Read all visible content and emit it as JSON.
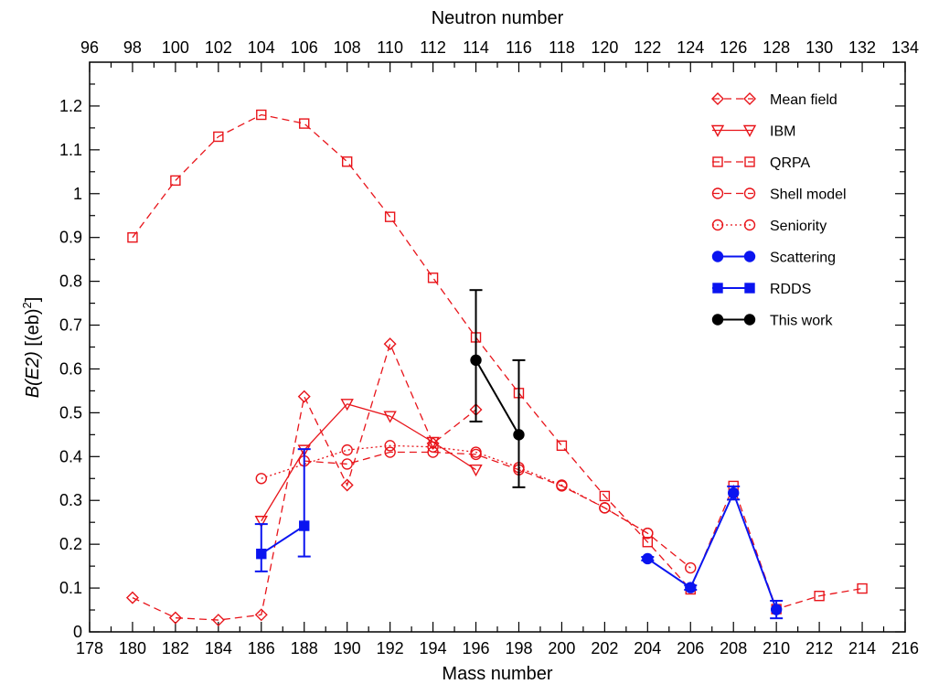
{
  "chart_data": {
    "type": "line",
    "xlabel": "Mass number",
    "x2label": "Neutron number",
    "xlim": [
      178,
      216
    ],
    "xticks": [
      178,
      180,
      182,
      184,
      186,
      188,
      190,
      192,
      194,
      196,
      198,
      200,
      202,
      204,
      206,
      208,
      210,
      212,
      214,
      216
    ],
    "x2ticks": [
      96,
      98,
      100,
      102,
      104,
      106,
      108,
      110,
      112,
      114,
      116,
      118,
      120,
      122,
      124,
      126,
      128,
      130,
      132,
      134
    ],
    "ylim": [
      0,
      1.3
    ],
    "yticks": [
      "0",
      "0.1",
      "0.2",
      "0.3",
      "0.4",
      "0.5",
      "0.6",
      "0.7",
      "0.8",
      "0.9",
      "1",
      "1.1",
      "1.2"
    ],
    "ylabel_main": "B(E2)",
    "ylabel_unit": " [(eb)",
    "ylabel_sup": "2",
    "ylabel_close": "]",
    "legend_position": "top-right",
    "series": [
      {
        "name": "Mean field",
        "color": "#e8141a",
        "marker": "diamond",
        "filled": false,
        "dash": "8,5",
        "x": [
          180,
          182,
          184,
          186,
          188,
          190,
          192,
          194,
          196
        ],
        "y": [
          0.078,
          0.032,
          0.027,
          0.039,
          0.537,
          0.335,
          0.657,
          0.43,
          0.507
        ]
      },
      {
        "name": "IBM",
        "color": "#e8141a",
        "marker": "triangle-down",
        "filled": false,
        "dash": "",
        "x": [
          186,
          188,
          190,
          192,
          194,
          196
        ],
        "y": [
          0.253,
          0.415,
          0.52,
          0.492,
          0.433,
          0.37
        ]
      },
      {
        "name": "QRPA",
        "color": "#e8141a",
        "marker": "square",
        "filled": false,
        "dash": "8,5",
        "x": [
          180,
          182,
          184,
          186,
          188,
          190,
          192,
          194,
          196,
          198,
          200,
          202,
          204,
          206,
          208,
          210,
          212,
          214
        ],
        "y": [
          0.9,
          1.03,
          1.13,
          1.18,
          1.16,
          1.073,
          0.947,
          0.808,
          0.672,
          0.545,
          0.425,
          0.31,
          0.205,
          0.097,
          0.333,
          0.052,
          0.082,
          0.099
        ]
      },
      {
        "name": "Shell model",
        "color": "#e8141a",
        "marker": "circle",
        "filled": false,
        "dash": "8,5",
        "x": [
          188,
          190,
          192,
          194,
          196,
          198,
          200,
          202,
          204,
          206
        ],
        "y": [
          0.39,
          0.383,
          0.41,
          0.41,
          0.405,
          0.37,
          0.333,
          0.283,
          0.225,
          0.146
        ]
      },
      {
        "name": "Seniority",
        "color": "#e8141a",
        "marker": "circle",
        "filled": false,
        "dash": "2,3",
        "x": [
          186,
          190,
          192,
          194,
          196,
          198,
          200,
          202,
          204
        ],
        "y": [
          0.35,
          0.415,
          0.425,
          0.422,
          0.41,
          0.375,
          0.335,
          0.283,
          0.225
        ]
      },
      {
        "name": "Scattering",
        "color": "#0a14f0",
        "marker": "circle",
        "filled": true,
        "dash": "",
        "x": [
          204,
          206,
          208,
          210
        ],
        "y": [
          0.167,
          0.101,
          0.317,
          0.051
        ],
        "err": [
          0.004,
          0.005,
          0.015,
          0.02
        ]
      },
      {
        "name": "RDDS",
        "color": "#0a14f0",
        "marker": "square",
        "filled": true,
        "dash": "",
        "x": [
          186,
          188
        ],
        "y": [
          0.178,
          0.242
        ],
        "err_low": [
          0.04,
          0.07
        ],
        "err_high": [
          0.068,
          0.175
        ]
      },
      {
        "name": "This work",
        "color": "#000000",
        "marker": "circle",
        "filled": true,
        "dash": "",
        "x": [
          196,
          198
        ],
        "y": [
          0.62,
          0.45
        ],
        "err_low": [
          0.14,
          0.12
        ],
        "err_high": [
          0.16,
          0.17
        ]
      }
    ]
  }
}
